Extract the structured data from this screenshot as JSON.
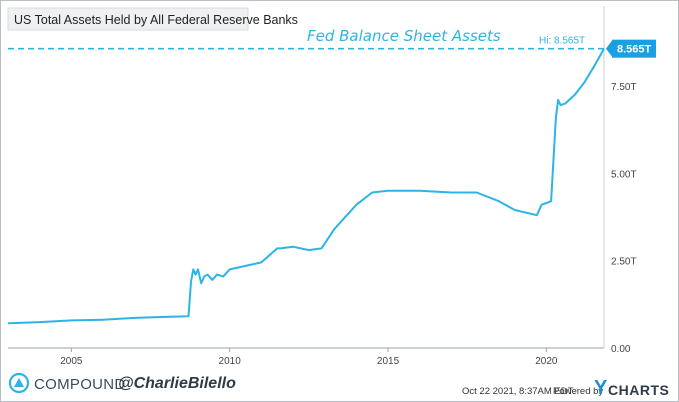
{
  "chart_data": {
    "type": "line",
    "title": "US Total Assets Held by All Federal Reserve Banks",
    "annotation": "Fed Balance Sheet Assets",
    "high_label": "Hi: 8.565T",
    "last_value_label": "8.565T",
    "high_value": 8.565,
    "x_range": [
      2003.0,
      2021.82
    ],
    "ylim": [
      0,
      9.5
    ],
    "x_ticks": [
      2005,
      2010,
      2015,
      2020
    ],
    "x_tick_labels": [
      "2005",
      "2010",
      "2015",
      "2020"
    ],
    "y_ticks": [
      0,
      2.5,
      5.0,
      7.5
    ],
    "y_tick_labels": [
      "0.00",
      "2.50T",
      "5.00T",
      "7.50T"
    ],
    "grid": false,
    "series": [
      {
        "color": "#2cb4e8",
        "x": [
          2003.0,
          2004.0,
          2005.0,
          2006.0,
          2007.0,
          2008.0,
          2008.7,
          2008.78,
          2008.85,
          2008.92,
          2009.0,
          2009.1,
          2009.2,
          2009.3,
          2009.45,
          2009.6,
          2009.8,
          2010.0,
          2010.5,
          2011.0,
          2011.5,
          2011.6,
          2012.0,
          2012.5,
          2012.9,
          2013.3,
          2014.0,
          2014.5,
          2015.0,
          2016.0,
          2017.0,
          2017.8,
          2018.5,
          2019.0,
          2019.7,
          2019.85,
          2020.0,
          2020.15,
          2020.22,
          2020.3,
          2020.37,
          2020.45,
          2020.6,
          2020.9,
          2021.2,
          2021.5,
          2021.82
        ],
        "y": [
          0.71,
          0.74,
          0.79,
          0.81,
          0.86,
          0.89,
          0.91,
          1.9,
          2.25,
          2.1,
          2.25,
          1.85,
          2.05,
          2.1,
          1.95,
          2.1,
          2.05,
          2.25,
          2.35,
          2.45,
          2.85,
          2.85,
          2.9,
          2.8,
          2.85,
          3.4,
          4.1,
          4.45,
          4.5,
          4.5,
          4.45,
          4.45,
          4.2,
          3.95,
          3.8,
          4.1,
          4.15,
          4.2,
          5.3,
          6.6,
          7.1,
          6.95,
          7.0,
          7.25,
          7.6,
          8.05,
          8.565
        ]
      }
    ]
  },
  "footer": {
    "brand": "COMPOUND",
    "handle": "@CharlieBilello",
    "timestamp": "Oct 22 2021, 8:37AM EDT.",
    "powered_by": "Powered by",
    "ycharts_y": "Y",
    "ycharts_rest": "CHARTS"
  },
  "colors": {
    "line": "#2cb4e8",
    "hi_line": "#2cb4e8",
    "badge": "#1a9fe0",
    "axis_text": "#444444"
  }
}
